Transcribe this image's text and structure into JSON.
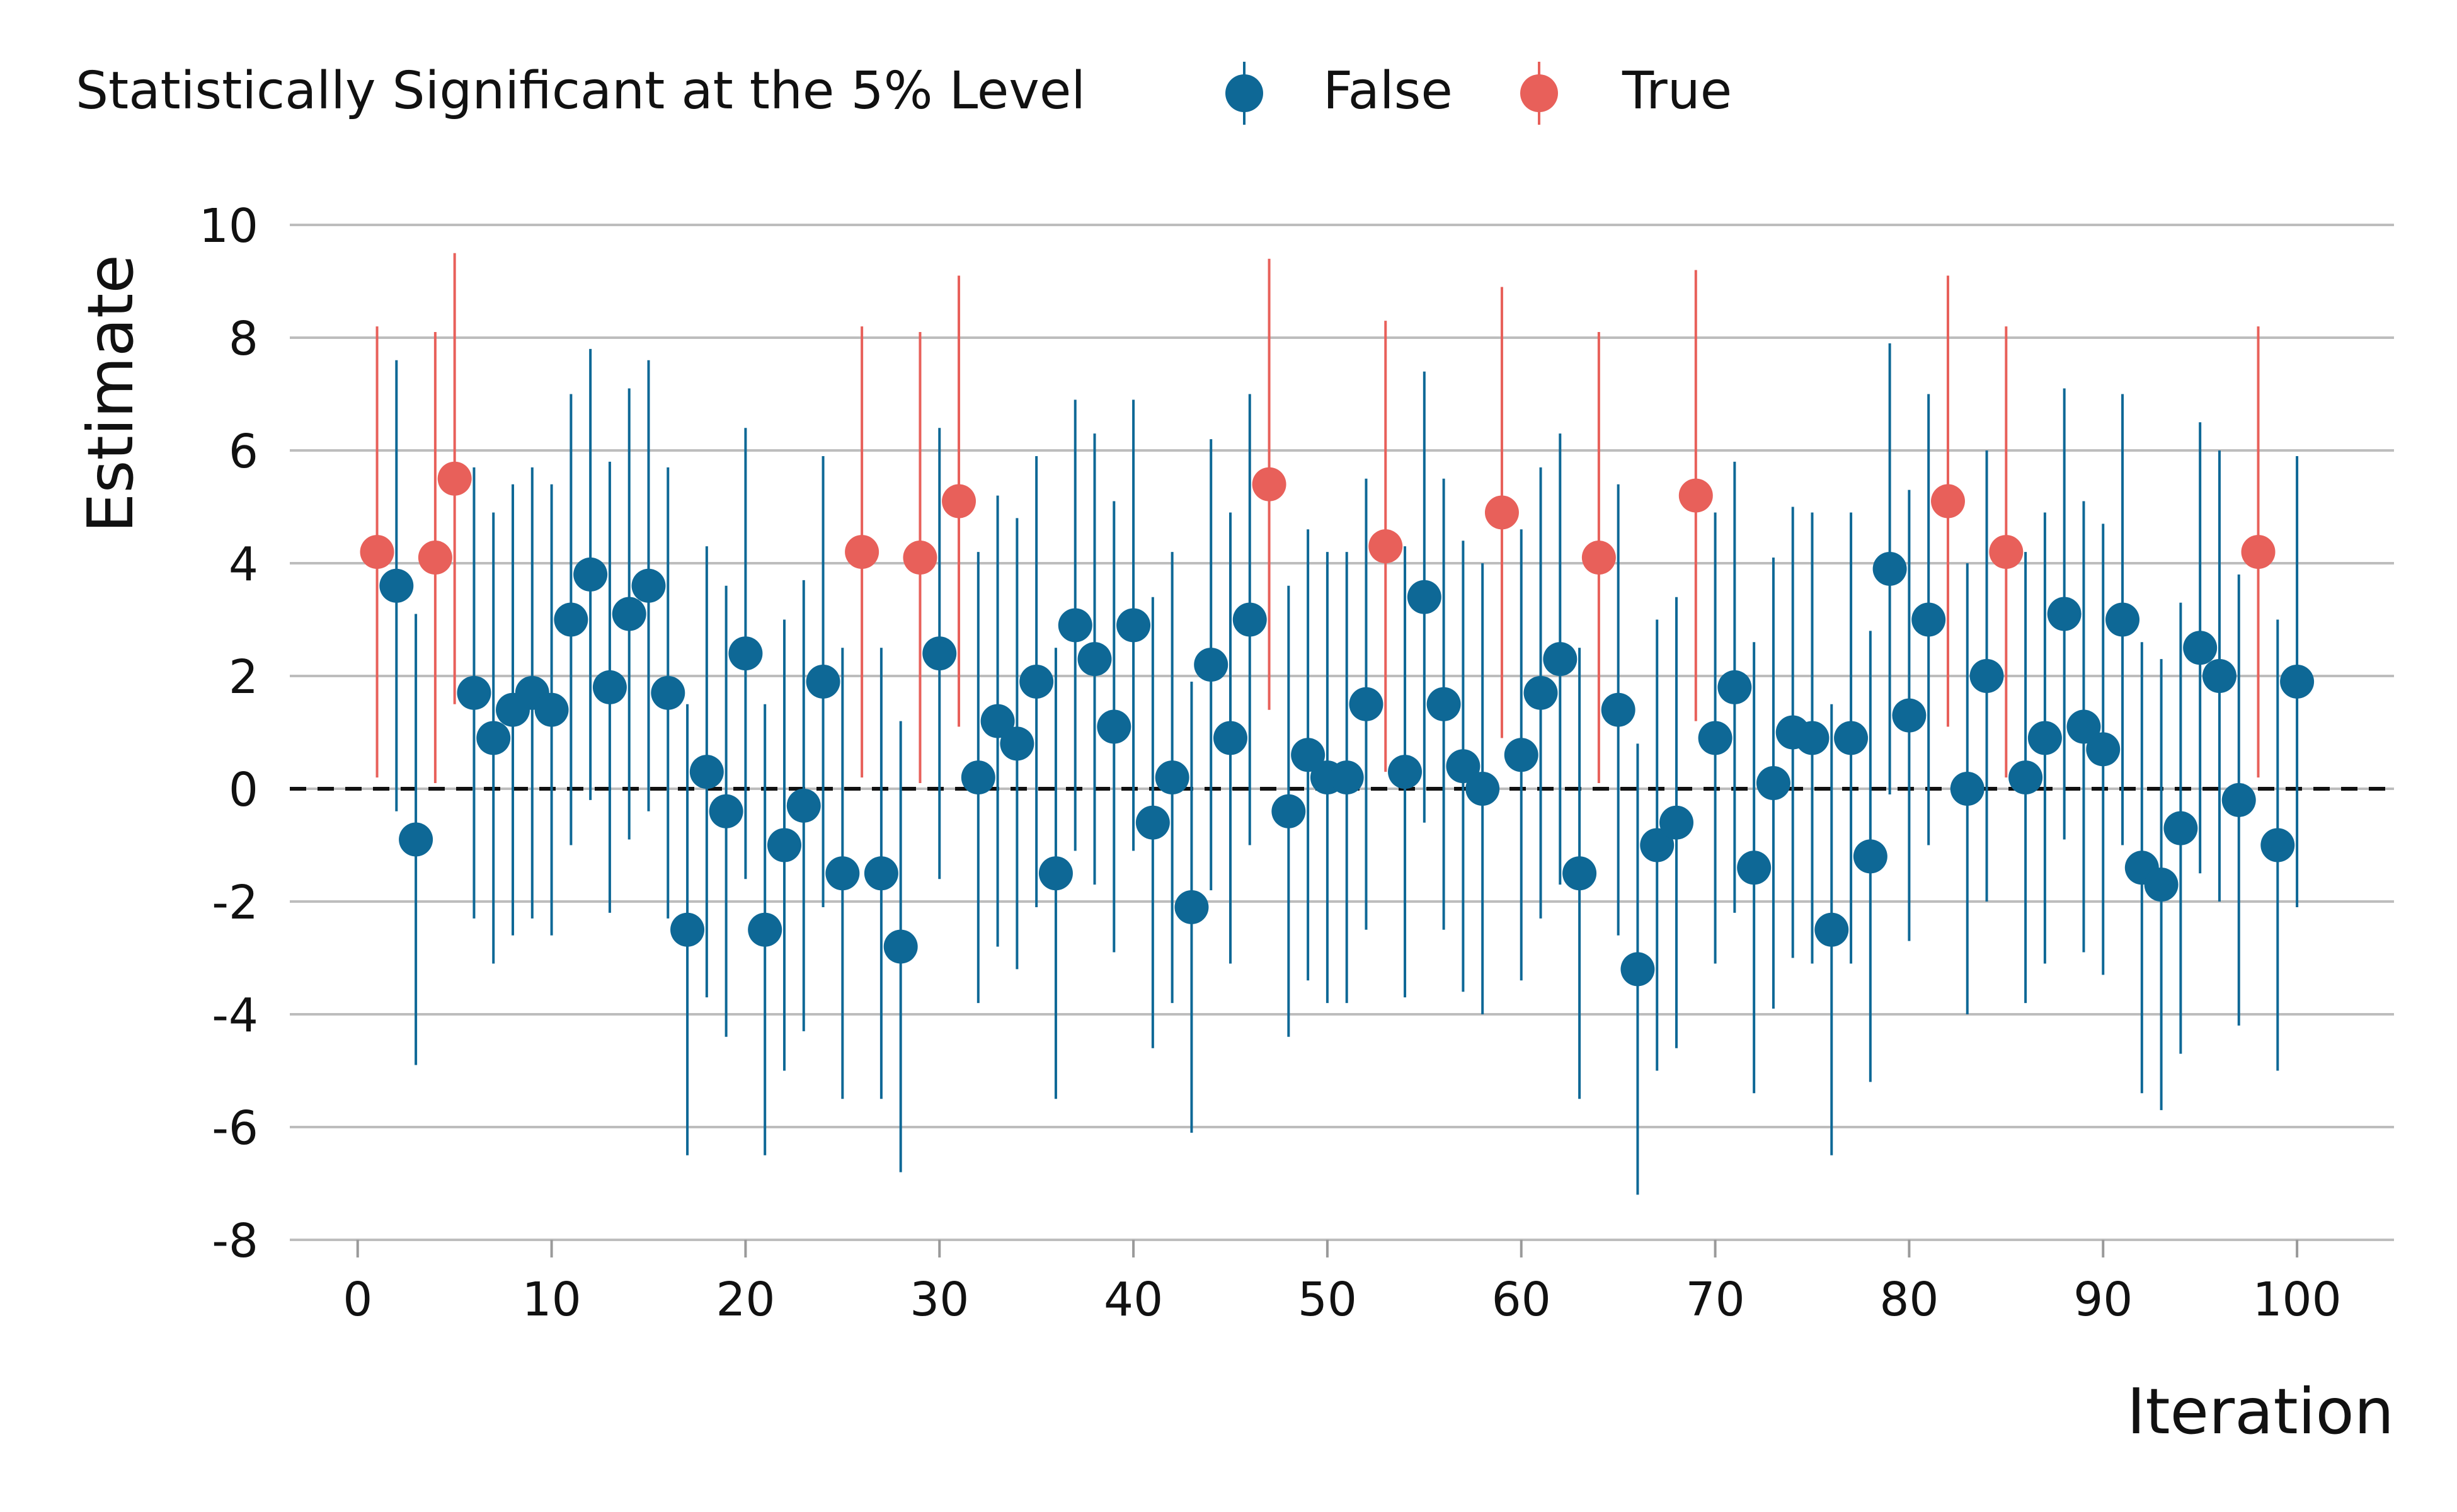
{
  "chart_data": {
    "type": "scatter",
    "xlabel": "Iteration",
    "ylabel": "Estimate",
    "xlim": [
      -3.5,
      105
    ],
    "ylim": [
      -8,
      10
    ],
    "xticks": [
      0,
      10,
      20,
      30,
      40,
      50,
      60,
      70,
      80,
      90,
      100
    ],
    "yticks": [
      -8,
      -6,
      -4,
      -2,
      0,
      2,
      4,
      6,
      8,
      10
    ],
    "grid": "horizontal",
    "reference_line": 0,
    "legend": {
      "title": "Statistically Significant at the 5% Level",
      "position": "top",
      "entries": [
        {
          "label": "False",
          "color": "#0E6896"
        },
        {
          "label": "True",
          "color": "#E8605A"
        }
      ]
    },
    "colors": {
      "False": "#0E6896",
      "True": "#E8605A"
    },
    "points": [
      {
        "x": 1,
        "y": 4.2,
        "low": 0.2,
        "high": 8.2,
        "significant": true
      },
      {
        "x": 2,
        "y": 3.6,
        "low": -0.4,
        "high": 7.6,
        "significant": false
      },
      {
        "x": 3,
        "y": -0.9,
        "low": -4.9,
        "high": 3.1,
        "significant": false
      },
      {
        "x": 4,
        "y": 4.1,
        "low": 0.1,
        "high": 8.1,
        "significant": true
      },
      {
        "x": 5,
        "y": 5.5,
        "low": 1.5,
        "high": 9.5,
        "significant": true
      },
      {
        "x": 6,
        "y": 1.7,
        "low": -2.3,
        "high": 5.7,
        "significant": false
      },
      {
        "x": 7,
        "y": 0.9,
        "low": -3.1,
        "high": 4.9,
        "significant": false
      },
      {
        "x": 8,
        "y": 1.4,
        "low": -2.6,
        "high": 5.4,
        "significant": false
      },
      {
        "x": 9,
        "y": 1.7,
        "low": -2.3,
        "high": 5.7,
        "significant": false
      },
      {
        "x": 10,
        "y": 1.4,
        "low": -2.6,
        "high": 5.4,
        "significant": false
      },
      {
        "x": 11,
        "y": 3.0,
        "low": -1.0,
        "high": 7.0,
        "significant": false
      },
      {
        "x": 12,
        "y": 3.8,
        "low": -0.2,
        "high": 7.8,
        "significant": false
      },
      {
        "x": 13,
        "y": 1.8,
        "low": -2.2,
        "high": 5.8,
        "significant": false
      },
      {
        "x": 14,
        "y": 3.1,
        "low": -0.9,
        "high": 7.1,
        "significant": false
      },
      {
        "x": 15,
        "y": 3.6,
        "low": -0.4,
        "high": 7.6,
        "significant": false
      },
      {
        "x": 16,
        "y": 1.7,
        "low": -2.3,
        "high": 5.7,
        "significant": false
      },
      {
        "x": 17,
        "y": -2.5,
        "low": -6.5,
        "high": 1.5,
        "significant": false
      },
      {
        "x": 18,
        "y": 0.3,
        "low": -3.7,
        "high": 4.3,
        "significant": false
      },
      {
        "x": 19,
        "y": -0.4,
        "low": -4.4,
        "high": 3.6,
        "significant": false
      },
      {
        "x": 20,
        "y": 2.4,
        "low": -1.6,
        "high": 6.4,
        "significant": false
      },
      {
        "x": 21,
        "y": -2.5,
        "low": -6.5,
        "high": 1.5,
        "significant": false
      },
      {
        "x": 22,
        "y": -1.0,
        "low": -5.0,
        "high": 3.0,
        "significant": false
      },
      {
        "x": 23,
        "y": -0.3,
        "low": -4.3,
        "high": 3.7,
        "significant": false
      },
      {
        "x": 24,
        "y": 1.9,
        "low": -2.1,
        "high": 5.9,
        "significant": false
      },
      {
        "x": 25,
        "y": -1.5,
        "low": -5.5,
        "high": 2.5,
        "significant": false
      },
      {
        "x": 26,
        "y": 4.2,
        "low": 0.2,
        "high": 8.2,
        "significant": true
      },
      {
        "x": 27,
        "y": -1.5,
        "low": -5.5,
        "high": 2.5,
        "significant": false
      },
      {
        "x": 28,
        "y": -2.8,
        "low": -6.8,
        "high": 1.2,
        "significant": false
      },
      {
        "x": 29,
        "y": 4.1,
        "low": 0.1,
        "high": 8.1,
        "significant": true
      },
      {
        "x": 30,
        "y": 2.4,
        "low": -1.6,
        "high": 6.4,
        "significant": false
      },
      {
        "x": 31,
        "y": 5.1,
        "low": 1.1,
        "high": 9.1,
        "significant": true
      },
      {
        "x": 32,
        "y": 0.2,
        "low": -3.8,
        "high": 4.2,
        "significant": false
      },
      {
        "x": 33,
        "y": 1.2,
        "low": -2.8,
        "high": 5.2,
        "significant": false
      },
      {
        "x": 34,
        "y": 0.8,
        "low": -3.2,
        "high": 4.8,
        "significant": false
      },
      {
        "x": 35,
        "y": 1.9,
        "low": -2.1,
        "high": 5.9,
        "significant": false
      },
      {
        "x": 36,
        "y": -1.5,
        "low": -5.5,
        "high": 2.5,
        "significant": false
      },
      {
        "x": 37,
        "y": 2.9,
        "low": -1.1,
        "high": 6.9,
        "significant": false
      },
      {
        "x": 38,
        "y": 2.3,
        "low": -1.7,
        "high": 6.3,
        "significant": false
      },
      {
        "x": 39,
        "y": 1.1,
        "low": -2.9,
        "high": 5.1,
        "significant": false
      },
      {
        "x": 40,
        "y": 2.9,
        "low": -1.1,
        "high": 6.9,
        "significant": false
      },
      {
        "x": 41,
        "y": -0.6,
        "low": -4.6,
        "high": 3.4,
        "significant": false
      },
      {
        "x": 42,
        "y": 0.2,
        "low": -3.8,
        "high": 4.2,
        "significant": false
      },
      {
        "x": 43,
        "y": -2.1,
        "low": -6.1,
        "high": 1.9,
        "significant": false
      },
      {
        "x": 44,
        "y": 2.2,
        "low": -1.8,
        "high": 6.2,
        "significant": false
      },
      {
        "x": 45,
        "y": 0.9,
        "low": -3.1,
        "high": 4.9,
        "significant": false
      },
      {
        "x": 46,
        "y": 3.0,
        "low": -1.0,
        "high": 7.0,
        "significant": false
      },
      {
        "x": 47,
        "y": 5.4,
        "low": 1.4,
        "high": 9.4,
        "significant": true
      },
      {
        "x": 48,
        "y": -0.4,
        "low": -4.4,
        "high": 3.6,
        "significant": false
      },
      {
        "x": 49,
        "y": 0.6,
        "low": -3.4,
        "high": 4.6,
        "significant": false
      },
      {
        "x": 50,
        "y": 0.2,
        "low": -3.8,
        "high": 4.2,
        "significant": false
      },
      {
        "x": 51,
        "y": 0.2,
        "low": -3.8,
        "high": 4.2,
        "significant": false
      },
      {
        "x": 52,
        "y": 1.5,
        "low": -2.5,
        "high": 5.5,
        "significant": false
      },
      {
        "x": 53,
        "y": 4.3,
        "low": 0.3,
        "high": 8.3,
        "significant": true
      },
      {
        "x": 54,
        "y": 0.3,
        "low": -3.7,
        "high": 4.3,
        "significant": false
      },
      {
        "x": 55,
        "y": 3.4,
        "low": -0.6,
        "high": 7.4,
        "significant": false
      },
      {
        "x": 56,
        "y": 1.5,
        "low": -2.5,
        "high": 5.5,
        "significant": false
      },
      {
        "x": 57,
        "y": 0.4,
        "low": -3.6,
        "high": 4.4,
        "significant": false
      },
      {
        "x": 58,
        "y": 0.0,
        "low": -4.0,
        "high": 4.0,
        "significant": false
      },
      {
        "x": 59,
        "y": 4.9,
        "low": 0.9,
        "high": 8.9,
        "significant": true
      },
      {
        "x": 60,
        "y": 0.6,
        "low": -3.4,
        "high": 4.6,
        "significant": false
      },
      {
        "x": 61,
        "y": 1.7,
        "low": -2.3,
        "high": 5.7,
        "significant": false
      },
      {
        "x": 62,
        "y": 2.3,
        "low": -1.7,
        "high": 6.3,
        "significant": false
      },
      {
        "x": 63,
        "y": -1.5,
        "low": -5.5,
        "high": 2.5,
        "significant": false
      },
      {
        "x": 64,
        "y": 4.1,
        "low": 0.1,
        "high": 8.1,
        "significant": true
      },
      {
        "x": 65,
        "y": 1.4,
        "low": -2.6,
        "high": 5.4,
        "significant": false
      },
      {
        "x": 66,
        "y": -3.2,
        "low": -7.2,
        "high": 0.8,
        "significant": false
      },
      {
        "x": 67,
        "y": -1.0,
        "low": -5.0,
        "high": 3.0,
        "significant": false
      },
      {
        "x": 68,
        "y": -0.6,
        "low": -4.6,
        "high": 3.4,
        "significant": false
      },
      {
        "x": 69,
        "y": 5.2,
        "low": 1.2,
        "high": 9.2,
        "significant": true
      },
      {
        "x": 70,
        "y": 0.9,
        "low": -3.1,
        "high": 4.9,
        "significant": false
      },
      {
        "x": 71,
        "y": 1.8,
        "low": -2.2,
        "high": 5.8,
        "significant": false
      },
      {
        "x": 72,
        "y": -1.4,
        "low": -5.4,
        "high": 2.6,
        "significant": false
      },
      {
        "x": 73,
        "y": 0.1,
        "low": -3.9,
        "high": 4.1,
        "significant": false
      },
      {
        "x": 74,
        "y": 1.0,
        "low": -3.0,
        "high": 5.0,
        "significant": false
      },
      {
        "x": 75,
        "y": 0.9,
        "low": -3.1,
        "high": 4.9,
        "significant": false
      },
      {
        "x": 76,
        "y": -2.5,
        "low": -6.5,
        "high": 1.5,
        "significant": false
      },
      {
        "x": 77,
        "y": 0.9,
        "low": -3.1,
        "high": 4.9,
        "significant": false
      },
      {
        "x": 78,
        "y": -1.2,
        "low": -5.2,
        "high": 2.8,
        "significant": false
      },
      {
        "x": 79,
        "y": 3.9,
        "low": -0.1,
        "high": 7.9,
        "significant": false
      },
      {
        "x": 80,
        "y": 1.3,
        "low": -2.7,
        "high": 5.3,
        "significant": false
      },
      {
        "x": 81,
        "y": 3.0,
        "low": -1.0,
        "high": 7.0,
        "significant": false
      },
      {
        "x": 82,
        "y": 5.1,
        "low": 1.1,
        "high": 9.1,
        "significant": true
      },
      {
        "x": 83,
        "y": 0.0,
        "low": -4.0,
        "high": 4.0,
        "significant": false
      },
      {
        "x": 84,
        "y": 2.0,
        "low": -2.0,
        "high": 6.0,
        "significant": false
      },
      {
        "x": 85,
        "y": 4.2,
        "low": 0.2,
        "high": 8.2,
        "significant": true
      },
      {
        "x": 86,
        "y": 0.2,
        "low": -3.8,
        "high": 4.2,
        "significant": false
      },
      {
        "x": 87,
        "y": 0.9,
        "low": -3.1,
        "high": 4.9,
        "significant": false
      },
      {
        "x": 88,
        "y": 3.1,
        "low": -0.9,
        "high": 7.1,
        "significant": false
      },
      {
        "x": 89,
        "y": 1.1,
        "low": -2.9,
        "high": 5.1,
        "significant": false
      },
      {
        "x": 90,
        "y": 0.7,
        "low": -3.3,
        "high": 4.7,
        "significant": false
      },
      {
        "x": 91,
        "y": 3.0,
        "low": -1.0,
        "high": 7.0,
        "significant": false
      },
      {
        "x": 92,
        "y": -1.4,
        "low": -5.4,
        "high": 2.6,
        "significant": false
      },
      {
        "x": 93,
        "y": -1.7,
        "low": -5.7,
        "high": 2.3,
        "significant": false
      },
      {
        "x": 94,
        "y": -0.7,
        "low": -4.7,
        "high": 3.3,
        "significant": false
      },
      {
        "x": 95,
        "y": 2.5,
        "low": -1.5,
        "high": 6.5,
        "significant": false
      },
      {
        "x": 96,
        "y": 2.0,
        "low": -2.0,
        "high": 6.0,
        "significant": false
      },
      {
        "x": 97,
        "y": -0.2,
        "low": -4.2,
        "high": 3.8,
        "significant": false
      },
      {
        "x": 98,
        "y": 4.2,
        "low": 0.2,
        "high": 8.2,
        "significant": true
      },
      {
        "x": 99,
        "y": -1.0,
        "low": -5.0,
        "high": 3.0,
        "significant": false
      },
      {
        "x": 100,
        "y": 1.9,
        "low": -2.1,
        "high": 5.9,
        "significant": false
      }
    ]
  }
}
